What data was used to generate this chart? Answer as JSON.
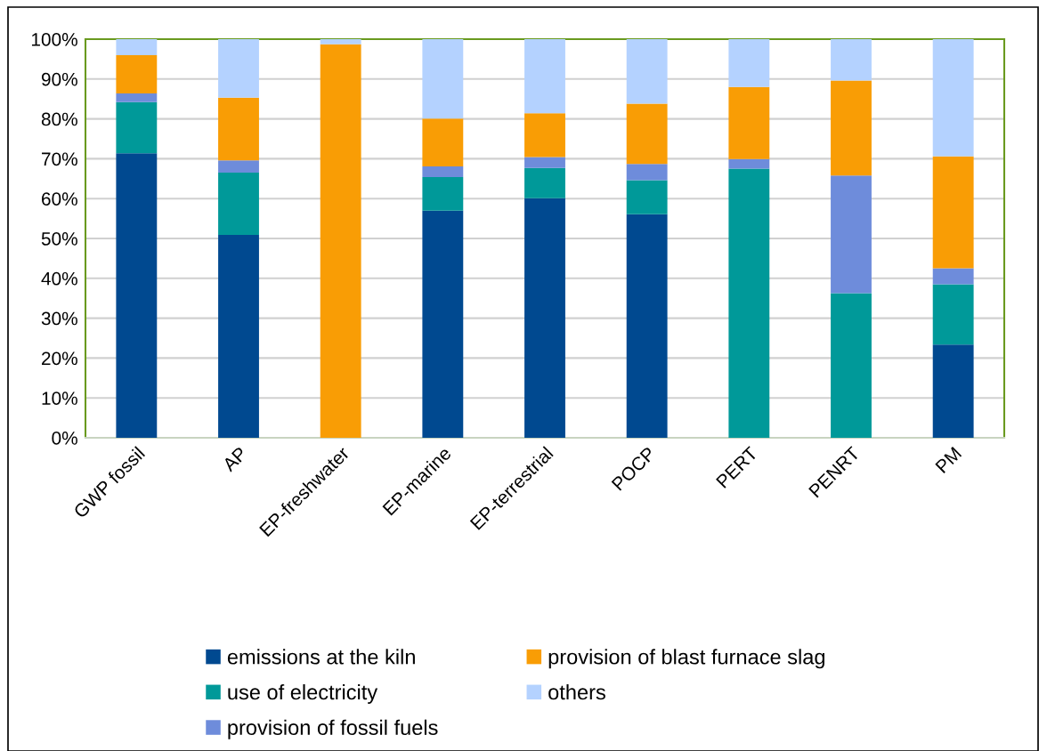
{
  "chart_data": {
    "type": "bar",
    "stacked": true,
    "categories": [
      "GWP fossil",
      "AP",
      "EP-freshwater",
      "EP-marine",
      "EP-terrestrial",
      "POCP",
      "PERT",
      "PENRT",
      "PM"
    ],
    "series": [
      {
        "name": "emissions at the kiln",
        "color": "#004990",
        "values": [
          71.4,
          50.9,
          0,
          57.0,
          60.1,
          56.1,
          0,
          0,
          23.4
        ]
      },
      {
        "name": "use of electricity",
        "color": "#009999",
        "values": [
          12.8,
          15.6,
          0,
          8.4,
          7.6,
          8.5,
          67.5,
          36.3,
          15.1
        ]
      },
      {
        "name": "provision of fossil fuels",
        "color": "#6e8cdb",
        "values": [
          2.2,
          3.1,
          0,
          2.7,
          2.7,
          4.1,
          2.4,
          29.5,
          4.0
        ]
      },
      {
        "name": "provision of blast furnace slag",
        "color": "#f99d05",
        "values": [
          9.6,
          15.7,
          98.7,
          12.0,
          11.0,
          15.1,
          18.1,
          23.8,
          28.1
        ]
      },
      {
        "name": "others",
        "color": "#b4d2ff",
        "values": [
          4.0,
          14.7,
          1.3,
          19.9,
          18.6,
          16.2,
          12.0,
          10.4,
          29.4
        ]
      }
    ],
    "ylim": [
      0,
      100
    ],
    "yticks": [
      {
        "value": 0,
        "label": "0%"
      },
      {
        "value": 10,
        "label": "10%"
      },
      {
        "value": 20,
        "label": "20%"
      },
      {
        "value": 30,
        "label": "30%"
      },
      {
        "value": 40,
        "label": "40%"
      },
      {
        "value": 50,
        "label": "50%"
      },
      {
        "value": 60,
        "label": "60%"
      },
      {
        "value": 70,
        "label": "70%"
      },
      {
        "value": 80,
        "label": "80%"
      },
      {
        "value": 90,
        "label": "90%"
      },
      {
        "value": 100,
        "label": "100%"
      }
    ],
    "grid": "y",
    "legend": "bottom"
  }
}
